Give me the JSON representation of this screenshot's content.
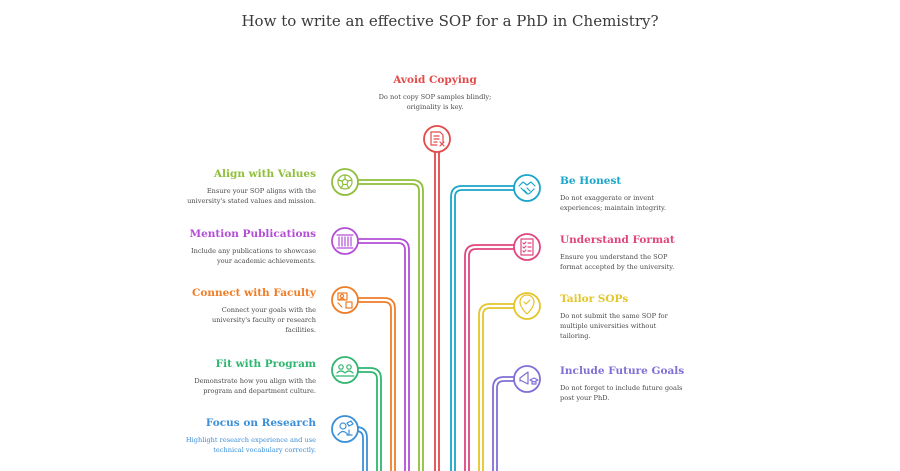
{
  "title": "How to write an effective SOP for a PhD in Chemistry?",
  "items": [
    {
      "key": "avoid_copying",
      "heading": "Avoid Copying",
      "desc": [
        "Do not copy SOP samples blindly;",
        "originality is key."
      ],
      "color": "#e34a4a",
      "icon": "document-x-icon"
    },
    {
      "key": "align_values",
      "heading": "Align with Values",
      "desc": [
        "Ensure your SOP aligns with the",
        "university's stated values and mission."
      ],
      "color": "#8fbf3a",
      "icon": "soccer-ball-icon"
    },
    {
      "key": "mention_publications",
      "heading": "Mention Publications",
      "desc": [
        "Include any publications to showcase",
        "your academic achievements."
      ],
      "color": "#b34fd6",
      "icon": "library-books-icon"
    },
    {
      "key": "connect_faculty",
      "heading": "Connect with Faculty",
      "desc": [
        "Connect your goals with the",
        "university's faculty or research",
        "facilities."
      ],
      "color": "#ef7d27",
      "icon": "presentation-faculty-icon"
    },
    {
      "key": "fit_program",
      "heading": "Fit with Program",
      "desc": [
        "Demonstrate how you align with the",
        "program and department culture."
      ],
      "color": "#2fb670",
      "icon": "people-group-icon"
    },
    {
      "key": "focus_research",
      "heading": "Focus on Research",
      "desc": [
        "Highlight research experience and use",
        "technical vocabulary correctly."
      ],
      "color": "#3b8fd8",
      "icon": "researcher-microscope-icon"
    },
    {
      "key": "be_honest",
      "heading": "Be Honest",
      "desc": [
        "Do not exaggerate or invent",
        "experiences; maintain integrity."
      ],
      "color": "#19a6c9",
      "icon": "handshake-icon"
    },
    {
      "key": "understand_format",
      "heading": "Understand Format",
      "desc": [
        "Ensure you understand the SOP",
        "format accepted by the university."
      ],
      "color": "#e0467e",
      "icon": "checklist-icon"
    },
    {
      "key": "tailor_sops",
      "heading": "Tailor SOPs",
      "desc": [
        "Do not submit the same SOP for",
        "multiple universities without",
        "tailoring."
      ],
      "color": "#e4c52a",
      "icon": "location-pin-icon"
    },
    {
      "key": "future_goals",
      "heading": "Include Future Goals",
      "desc": [
        "Do not forget to include future goals",
        "post your PhD."
      ],
      "color": "#7f6fd6",
      "icon": "megaphone-graduation-icon"
    }
  ]
}
